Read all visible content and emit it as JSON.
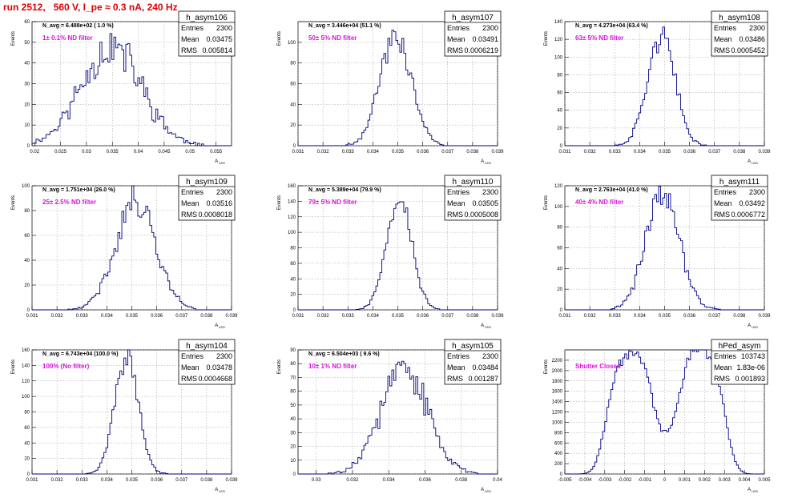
{
  "run_title": "run 2512,   560 V, I_pe ≈ 0.3 nA, 240 Hz",
  "colors": {
    "hist": "#000080",
    "filter_label": "#e010e0",
    "title": "#e00000",
    "grid": "#9a9a9a"
  },
  "stats_labels": {
    "entries": "Entries",
    "mean": "Mean",
    "rms": "RMS"
  },
  "xlabel": "A",
  "xlabel_sub": "LED",
  "ylabel": "Events",
  "chart_data": [
    {
      "type": "bar",
      "name": "h_asym106",
      "navg": "N_avg = 6.488e+02 ( 1.0 %)",
      "filter": "1± 0.1% ND filter",
      "entries": "2300",
      "mean": "0.03475",
      "rms": "0.005814",
      "xlim": [
        0.0195,
        0.058
      ],
      "ylim": [
        0,
        60
      ],
      "xticks": [
        0.02,
        0.025,
        0.03,
        0.035,
        0.04,
        0.045,
        0.05,
        0.055
      ],
      "xtick_labels": [
        "0.02",
        "0.025",
        "0.03",
        "0.035",
        "0.04",
        "0.045",
        "0.05",
        "0.055"
      ],
      "yticks": [
        0,
        10,
        20,
        30,
        40,
        50,
        60
      ],
      "ytick_labels": [
        "0",
        "10",
        "20",
        "30",
        "40",
        "50",
        "60"
      ],
      "hist": {
        "mu": 0.03475,
        "sigma": 0.005814,
        "peak": 48,
        "noise": 0.22,
        "seed": 11
      }
    },
    {
      "type": "bar",
      "name": "h_asym107",
      "navg": "N_avg = 3.446e+04 (51.1 %)",
      "filter": "50± 5% ND filter",
      "entries": "2300",
      "mean": "0.03491",
      "rms": "0.0006219",
      "xlim": [
        0.031,
        0.039
      ],
      "ylim": [
        0,
        120
      ],
      "xticks": [
        0.031,
        0.032,
        0.033,
        0.034,
        0.035,
        0.036,
        0.037,
        0.038,
        0.039
      ],
      "xtick_labels": [
        "0.031",
        "0.032",
        "0.033",
        "0.034",
        "0.035",
        "0.036",
        "0.037",
        "0.038",
        "0.039"
      ],
      "yticks": [
        0,
        20,
        40,
        60,
        80,
        100
      ],
      "ytick_labels": [
        "0",
        "20",
        "40",
        "60",
        "80",
        "100"
      ],
      "hist": {
        "mu": 0.03491,
        "sigma": 0.0006219,
        "peak": 108,
        "noise": 0.12,
        "seed": 23
      }
    },
    {
      "type": "bar",
      "name": "h_asym108",
      "navg": "N_avg = 4.273e+04 (63.4 %)",
      "filter": "63± 5% ND filter",
      "entries": "2300",
      "mean": "0.03486",
      "rms": "0.0005452",
      "xlim": [
        0.031,
        0.039
      ],
      "ylim": [
        0,
        140
      ],
      "xticks": [
        0.031,
        0.032,
        0.033,
        0.034,
        0.035,
        0.036,
        0.037,
        0.038,
        0.039
      ],
      "xtick_labels": [
        "0.031",
        "0.032",
        "0.033",
        "0.034",
        "0.035",
        "0.036",
        "0.037",
        "0.038",
        "0.039"
      ],
      "yticks": [
        0,
        20,
        40,
        60,
        80,
        100,
        120,
        140
      ],
      "ytick_labels": [
        "0",
        "20",
        "40",
        "60",
        "80",
        "100",
        "120",
        "140"
      ],
      "hist": {
        "mu": 0.03486,
        "sigma": 0.0005452,
        "peak": 125,
        "noise": 0.1,
        "seed": 37
      }
    },
    {
      "type": "bar",
      "name": "h_asym109",
      "navg": "N_avg = 1.751e+04 (26.0 %)",
      "filter": "25± 2.5% ND filter",
      "entries": "2300",
      "mean": "0.03516",
      "rms": "0.0008018",
      "xlim": [
        0.031,
        0.039
      ],
      "ylim": [
        0,
        100
      ],
      "xticks": [
        0.031,
        0.032,
        0.033,
        0.034,
        0.035,
        0.036,
        0.037,
        0.038,
        0.039
      ],
      "xtick_labels": [
        "0.031",
        "0.032",
        "0.033",
        "0.034",
        "0.035",
        "0.036",
        "0.037",
        "0.038",
        "0.039"
      ],
      "yticks": [
        0,
        20,
        40,
        60,
        80,
        100
      ],
      "ytick_labels": [
        "0",
        "20",
        "40",
        "60",
        "80",
        "100"
      ],
      "hist": {
        "mu": 0.03516,
        "sigma": 0.0008018,
        "peak": 88,
        "noise": 0.12,
        "seed": 41
      }
    },
    {
      "type": "bar",
      "name": "h_asym110",
      "navg": "N_avg = 5.389e+04 (79.9 %)",
      "filter": "79± 5% ND filter",
      "entries": "2300",
      "mean": "0.03505",
      "rms": "0.0005008",
      "xlim": [
        0.031,
        0.039
      ],
      "ylim": [
        0,
        160
      ],
      "xticks": [
        0.031,
        0.032,
        0.033,
        0.034,
        0.035,
        0.036,
        0.037,
        0.038,
        0.039
      ],
      "xtick_labels": [
        "0.031",
        "0.032",
        "0.033",
        "0.034",
        "0.035",
        "0.036",
        "0.037",
        "0.038",
        "0.039"
      ],
      "yticks": [
        0,
        20,
        40,
        60,
        80,
        100,
        120,
        140,
        160
      ],
      "ytick_labels": [
        "0",
        "20",
        "40",
        "60",
        "80",
        "100",
        "120",
        "140",
        "160"
      ],
      "hist": {
        "mu": 0.03505,
        "sigma": 0.0005008,
        "peak": 145,
        "noise": 0.1,
        "seed": 53
      }
    },
    {
      "type": "bar",
      "name": "h_asym111",
      "navg": "N_avg = 2.763e+04 (41.0 %)",
      "filter": "40± 4% ND filter",
      "entries": "2300",
      "mean": "0.03492",
      "rms": "0.0006772",
      "xlim": [
        0.031,
        0.039
      ],
      "ylim": [
        0,
        120
      ],
      "xticks": [
        0.031,
        0.032,
        0.033,
        0.034,
        0.035,
        0.036,
        0.037,
        0.038,
        0.039
      ],
      "xtick_labels": [
        "0.031",
        "0.032",
        "0.033",
        "0.034",
        "0.035",
        "0.036",
        "0.037",
        "0.038",
        "0.039"
      ],
      "yticks": [
        0,
        20,
        40,
        60,
        80,
        100,
        120
      ],
      "ytick_labels": [
        "0",
        "20",
        "40",
        "60",
        "80",
        "100",
        "120"
      ],
      "hist": {
        "mu": 0.03492,
        "sigma": 0.0006772,
        "peak": 110,
        "noise": 0.12,
        "seed": 67
      }
    },
    {
      "type": "bar",
      "name": "h_asym104",
      "navg": "N_avg = 6.743e+04 (100.0 %)",
      "filter": "100% (No filter)",
      "entries": "2300",
      "mean": "0.03478",
      "rms": "0.0004668",
      "xlim": [
        0.031,
        0.039
      ],
      "ylim": [
        0,
        160
      ],
      "xticks": [
        0.031,
        0.032,
        0.033,
        0.034,
        0.035,
        0.036,
        0.037,
        0.038,
        0.039
      ],
      "xtick_labels": [
        "0.031",
        "0.032",
        "0.033",
        "0.034",
        "0.035",
        "0.036",
        "0.037",
        "0.038",
        "0.039"
      ],
      "yticks": [
        0,
        20,
        40,
        60,
        80,
        100,
        120,
        140,
        160
      ],
      "ytick_labels": [
        "0",
        "20",
        "40",
        "60",
        "80",
        "100",
        "120",
        "140",
        "160"
      ],
      "hist": {
        "mu": 0.03478,
        "sigma": 0.0004668,
        "peak": 155,
        "noise": 0.1,
        "seed": 71
      }
    },
    {
      "type": "bar",
      "name": "h_asym105",
      "navg": "N_avg = 6.504e+03 ( 9.6 %)",
      "filter": "10± 1% ND filter",
      "entries": "2300",
      "mean": "0.03484",
      "rms": "0.001287",
      "xlim": [
        0.029,
        0.04
      ],
      "ylim": [
        0,
        90
      ],
      "xticks": [
        0.03,
        0.032,
        0.034,
        0.036,
        0.038,
        0.04
      ],
      "xtick_labels": [
        "0.03",
        "0.032",
        "0.034",
        "0.036",
        "0.038",
        "0.04"
      ],
      "yticks": [
        0,
        10,
        20,
        30,
        40,
        50,
        60,
        70,
        80,
        90
      ],
      "ytick_labels": [
        "0",
        "10",
        "20",
        "30",
        "40",
        "50",
        "60",
        "70",
        "80",
        "90"
      ],
      "hist": {
        "mu": 0.03484,
        "sigma": 0.001287,
        "peak": 75,
        "noise": 0.18,
        "seed": 83
      }
    },
    {
      "type": "bar",
      "name": "hPed_asym",
      "navg": "",
      "filter": "Shutter Closed",
      "entries": "103743",
      "mean": "1.83e-06",
      "rms": "0.001893",
      "xlim": [
        -0.005,
        0.005
      ],
      "ylim": [
        0,
        2400
      ],
      "xticks": [
        -0.005,
        -0.004,
        -0.003,
        -0.002,
        -0.001,
        0,
        0.001,
        0.002,
        0.003,
        0.004,
        0.005
      ],
      "xtick_labels": [
        "-0.005",
        "-0.004",
        "-0.003",
        "-0.002",
        "-0.001",
        "0",
        "0.001",
        "0.002",
        "0.003",
        "0.004",
        "0.005"
      ],
      "yticks": [
        0,
        200,
        400,
        600,
        800,
        1000,
        1200,
        1400,
        1600,
        1800,
        2000,
        2200
      ],
      "ytick_labels": [
        "0",
        "200",
        "400",
        "600",
        "800",
        "1000",
        "1200",
        "1400",
        "1600",
        "1800",
        "2000",
        "2200"
      ],
      "hist": {
        "double": true,
        "centers": [
          -0.0018,
          0.0019
        ],
        "widths": [
          0.0009,
          0.0009
        ],
        "peaks": [
          2150,
          2250
        ],
        "noise": 0.04,
        "seed": 97
      }
    }
  ]
}
